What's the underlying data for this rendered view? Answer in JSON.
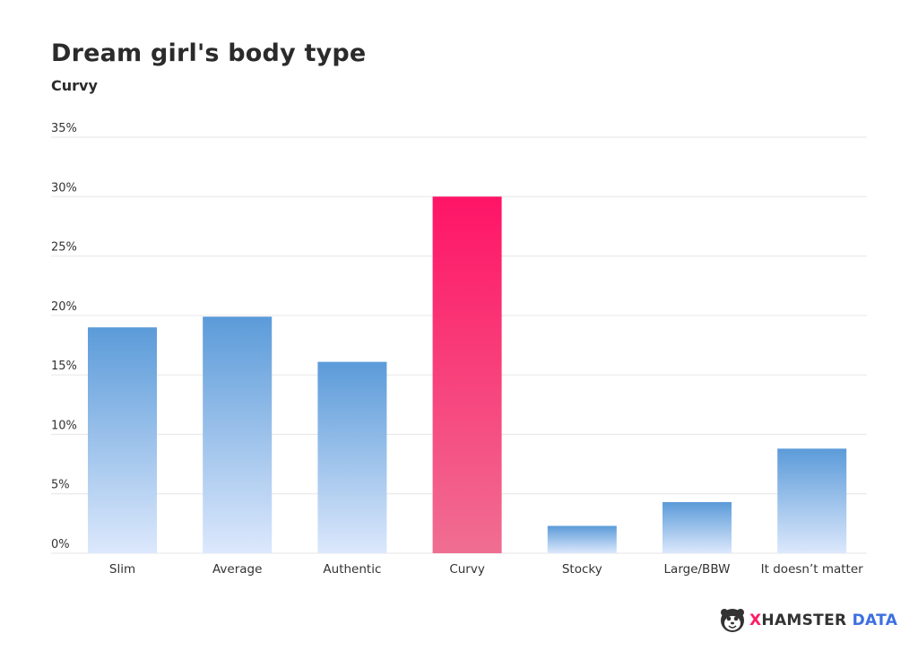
{
  "title": "Dream girl's body type",
  "subtitle": "Curvy",
  "logo": {
    "x": "X",
    "hamster": "HAMSTER",
    "data": "DATA"
  },
  "colors": {
    "bar_top": "#5b9bd9",
    "bar_bottom": "#dce8fc",
    "highlight_top": "#ff1466",
    "highlight_bottom": "#f06e92",
    "grid": "#e6e6e6",
    "text": "#333333"
  },
  "chart_data": {
    "type": "bar",
    "categories": [
      "Slim",
      "Average",
      "Authentic",
      "Curvy",
      "Stocky",
      "Large/BBW",
      "It doesn’t matter"
    ],
    "values": [
      19,
      19.9,
      16.1,
      30,
      2.3,
      4.3,
      8.8
    ],
    "highlight": "Curvy",
    "ylim": [
      0,
      35
    ],
    "yticks": [
      0,
      5,
      10,
      15,
      20,
      25,
      30,
      35
    ],
    "ytick_labels": [
      "0%",
      "5%",
      "10%",
      "15%",
      "20%",
      "25%",
      "30%",
      "35%"
    ],
    "grid": true
  }
}
